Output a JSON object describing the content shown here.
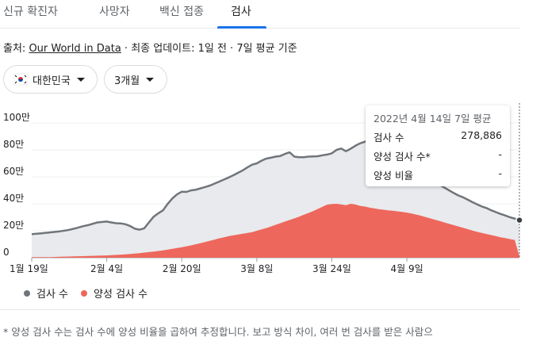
{
  "tabs": [
    {
      "label": "신규 확진자"
    },
    {
      "label": "사망자"
    },
    {
      "label": "백신 접종"
    },
    {
      "label": "검사",
      "active": true
    }
  ],
  "source": {
    "prefix": "출처: ",
    "link": "Our World in Data",
    "suffix": " · 최종 업데이트: 1일 전 · 7일 평균 기준"
  },
  "filters": {
    "country": "대한민국",
    "period": "3개월"
  },
  "tooltip": {
    "title": "2022년 4월 14일 7일 평균",
    "rows": [
      {
        "label": "검사 수",
        "value": "278,886"
      },
      {
        "label": "양성 검사 수*",
        "value": "-"
      },
      {
        "label": "양성 비율",
        "value": "-"
      }
    ]
  },
  "legend": [
    {
      "label": "검사 수",
      "color": "#70757a"
    },
    {
      "label": "양성 검사 수",
      "color": "#ee675c"
    }
  ],
  "footnote": "* 양성 검사 수는 검사 수에 양성 비율을 곱하여 추정합니다. 보고 방식 차이, 여러 번 검사를 받은 사람으",
  "chart_data": {
    "type": "area",
    "y_ticks": [
      "0",
      "20만",
      "40만",
      "60만",
      "80만",
      "100만"
    ],
    "y_tick_values": [
      0,
      200000,
      400000,
      600000,
      800000,
      1000000
    ],
    "ylim": [
      0,
      1000000
    ],
    "x_ticks": [
      "1월 19일",
      "2월 4일",
      "2월 20일",
      "3월 8일",
      "3월 24일",
      "4월 9일"
    ],
    "x_tick_index": [
      0,
      16,
      32,
      48,
      64,
      80
    ],
    "start_label": "1월 19일",
    "colors": {
      "tests_line": "#70757a",
      "tests_fill": "#e8eaed",
      "positive_fill": "#ee675c"
    },
    "series": [
      {
        "name": "검사 수",
        "values": [
          175000,
          178000,
          181000,
          185000,
          188000,
          192000,
          196000,
          201000,
          207000,
          215000,
          225000,
          234000,
          242000,
          252000,
          262000,
          265000,
          268000,
          262000,
          256000,
          255000,
          248000,
          235000,
          215000,
          208000,
          218000,
          262000,
          305000,
          330000,
          352000,
          400000,
          440000,
          470000,
          490000,
          488000,
          500000,
          505000,
          515000,
          525000,
          535000,
          550000,
          565000,
          580000,
          595000,
          612000,
          630000,
          648000,
          670000,
          690000,
          700000,
          720000,
          735000,
          742000,
          750000,
          755000,
          770000,
          782000,
          750000,
          745000,
          745000,
          750000,
          752000,
          753000,
          760000,
          765000,
          775000,
          800000,
          810000,
          790000,
          808000,
          830000,
          848000,
          860000,
          875000,
          870000,
          840000,
          825000,
          815000,
          805000,
          820000,
          790000,
          760000,
          730000,
          700000,
          670000,
          630000,
          590000,
          560000,
          540000,
          520000,
          500000,
          480000,
          462000,
          448000,
          430000,
          412000,
          395000,
          380000,
          368000,
          352000,
          338000,
          325000,
          313000,
          300000,
          290000,
          278886
        ]
      },
      {
        "name": "양성 검사 수",
        "values": [
          5000,
          5000,
          5000,
          5000,
          5000,
          6000,
          7000,
          8000,
          9000,
          10000,
          11000,
          12000,
          13000,
          14000,
          15000,
          16000,
          17000,
          19000,
          21000,
          23000,
          25000,
          28000,
          31000,
          34000,
          38000,
          42000,
          46000,
          50000,
          55000,
          60000,
          66000,
          72000,
          78000,
          85000,
          92000,
          100000,
          108000,
          117000,
          126000,
          135000,
          144000,
          152000,
          160000,
          166000,
          172000,
          178000,
          184000,
          190000,
          200000,
          210000,
          220000,
          232000,
          244000,
          256000,
          268000,
          280000,
          292000,
          305000,
          318000,
          332000,
          346000,
          362000,
          378000,
          394000,
          398000,
          400000,
          395000,
          390000,
          400000,
          395000,
          385000,
          380000,
          372000,
          366000,
          360000,
          356000,
          352000,
          348000,
          344000,
          340000,
          335000,
          328000,
          320000,
          312000,
          302000,
          292000,
          282000,
          272000,
          262000,
          252000,
          242000,
          232000,
          222000,
          212000,
          202000,
          192000,
          184000,
          176000,
          168000,
          160000,
          152000,
          145000,
          138000,
          132000,
          10000
        ]
      }
    ]
  }
}
